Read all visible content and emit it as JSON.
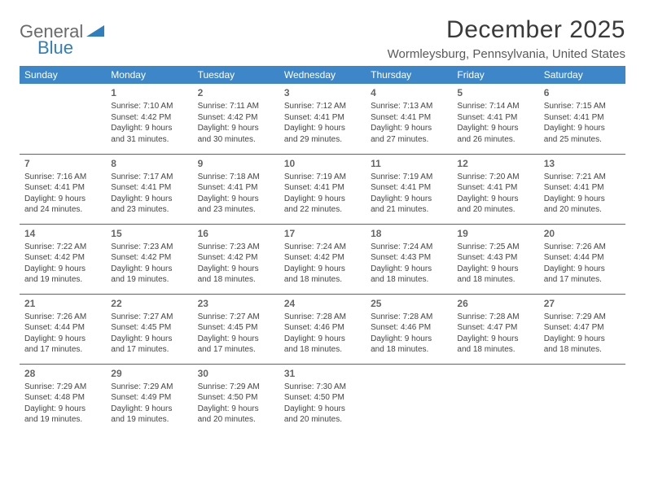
{
  "logo": {
    "text1": "General",
    "text2": "Blue"
  },
  "title": "December 2025",
  "location": "Wormleysburg, Pennsylvania, United States",
  "colors": {
    "header_bg": "#3d87c9",
    "header_text": "#ffffff",
    "rule": "#2f6fa8",
    "body_text": "#444444",
    "daynum": "#666666",
    "logo_gray": "#6a6a6a",
    "logo_blue": "#2f7fbf",
    "title_color": "#3a3a3a",
    "background": "#ffffff"
  },
  "typography": {
    "title_fontsize": 30,
    "location_fontsize": 15,
    "header_fontsize": 12,
    "daynum_fontsize": 12,
    "cell_fontsize": 10,
    "font_family": "Arial"
  },
  "dayHeaders": [
    "Sunday",
    "Monday",
    "Tuesday",
    "Wednesday",
    "Thursday",
    "Friday",
    "Saturday"
  ],
  "weeks": [
    [
      null,
      {
        "n": "1",
        "sr": "7:10 AM",
        "ss": "4:42 PM",
        "dl": "9 hours and 31 minutes."
      },
      {
        "n": "2",
        "sr": "7:11 AM",
        "ss": "4:42 PM",
        "dl": "9 hours and 30 minutes."
      },
      {
        "n": "3",
        "sr": "7:12 AM",
        "ss": "4:41 PM",
        "dl": "9 hours and 29 minutes."
      },
      {
        "n": "4",
        "sr": "7:13 AM",
        "ss": "4:41 PM",
        "dl": "9 hours and 27 minutes."
      },
      {
        "n": "5",
        "sr": "7:14 AM",
        "ss": "4:41 PM",
        "dl": "9 hours and 26 minutes."
      },
      {
        "n": "6",
        "sr": "7:15 AM",
        "ss": "4:41 PM",
        "dl": "9 hours and 25 minutes."
      }
    ],
    [
      {
        "n": "7",
        "sr": "7:16 AM",
        "ss": "4:41 PM",
        "dl": "9 hours and 24 minutes."
      },
      {
        "n": "8",
        "sr": "7:17 AM",
        "ss": "4:41 PM",
        "dl": "9 hours and 23 minutes."
      },
      {
        "n": "9",
        "sr": "7:18 AM",
        "ss": "4:41 PM",
        "dl": "9 hours and 23 minutes."
      },
      {
        "n": "10",
        "sr": "7:19 AM",
        "ss": "4:41 PM",
        "dl": "9 hours and 22 minutes."
      },
      {
        "n": "11",
        "sr": "7:19 AM",
        "ss": "4:41 PM",
        "dl": "9 hours and 21 minutes."
      },
      {
        "n": "12",
        "sr": "7:20 AM",
        "ss": "4:41 PM",
        "dl": "9 hours and 20 minutes."
      },
      {
        "n": "13",
        "sr": "7:21 AM",
        "ss": "4:41 PM",
        "dl": "9 hours and 20 minutes."
      }
    ],
    [
      {
        "n": "14",
        "sr": "7:22 AM",
        "ss": "4:42 PM",
        "dl": "9 hours and 19 minutes."
      },
      {
        "n": "15",
        "sr": "7:23 AM",
        "ss": "4:42 PM",
        "dl": "9 hours and 19 minutes."
      },
      {
        "n": "16",
        "sr": "7:23 AM",
        "ss": "4:42 PM",
        "dl": "9 hours and 18 minutes."
      },
      {
        "n": "17",
        "sr": "7:24 AM",
        "ss": "4:42 PM",
        "dl": "9 hours and 18 minutes."
      },
      {
        "n": "18",
        "sr": "7:24 AM",
        "ss": "4:43 PM",
        "dl": "9 hours and 18 minutes."
      },
      {
        "n": "19",
        "sr": "7:25 AM",
        "ss": "4:43 PM",
        "dl": "9 hours and 18 minutes."
      },
      {
        "n": "20",
        "sr": "7:26 AM",
        "ss": "4:44 PM",
        "dl": "9 hours and 17 minutes."
      }
    ],
    [
      {
        "n": "21",
        "sr": "7:26 AM",
        "ss": "4:44 PM",
        "dl": "9 hours and 17 minutes."
      },
      {
        "n": "22",
        "sr": "7:27 AM",
        "ss": "4:45 PM",
        "dl": "9 hours and 17 minutes."
      },
      {
        "n": "23",
        "sr": "7:27 AM",
        "ss": "4:45 PM",
        "dl": "9 hours and 17 minutes."
      },
      {
        "n": "24",
        "sr": "7:28 AM",
        "ss": "4:46 PM",
        "dl": "9 hours and 18 minutes."
      },
      {
        "n": "25",
        "sr": "7:28 AM",
        "ss": "4:46 PM",
        "dl": "9 hours and 18 minutes."
      },
      {
        "n": "26",
        "sr": "7:28 AM",
        "ss": "4:47 PM",
        "dl": "9 hours and 18 minutes."
      },
      {
        "n": "27",
        "sr": "7:29 AM",
        "ss": "4:47 PM",
        "dl": "9 hours and 18 minutes."
      }
    ],
    [
      {
        "n": "28",
        "sr": "7:29 AM",
        "ss": "4:48 PM",
        "dl": "9 hours and 19 minutes."
      },
      {
        "n": "29",
        "sr": "7:29 AM",
        "ss": "4:49 PM",
        "dl": "9 hours and 19 minutes."
      },
      {
        "n": "30",
        "sr": "7:29 AM",
        "ss": "4:50 PM",
        "dl": "9 hours and 20 minutes."
      },
      {
        "n": "31",
        "sr": "7:30 AM",
        "ss": "4:50 PM",
        "dl": "9 hours and 20 minutes."
      },
      null,
      null,
      null
    ]
  ],
  "labels": {
    "sunrise": "Sunrise: ",
    "sunset": "Sunset: ",
    "daylight": "Daylight: "
  }
}
